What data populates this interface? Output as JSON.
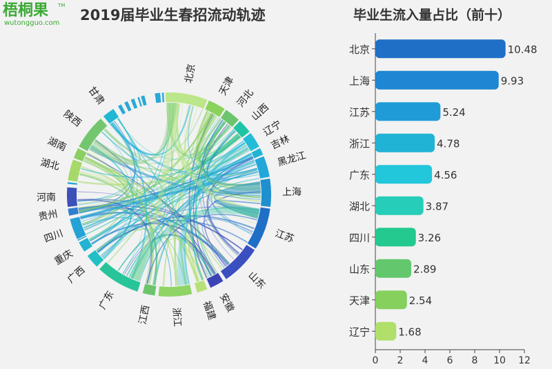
{
  "logo": {
    "name": "梧桐果",
    "site": "wutongguo.com",
    "tm": "TM"
  },
  "titles": {
    "chord": "2019届毕业生春招流动轨迹",
    "bar": "毕业生流入量占比（前十）"
  },
  "chord": {
    "regions": [
      "北京",
      "天津",
      "河北",
      "山西",
      "辽宁",
      "吉林",
      "黑龙江",
      "上海",
      "江苏",
      "山东",
      "安徽",
      "福建",
      "浙江",
      "江西",
      "广东",
      "广西",
      "重庆",
      "四川",
      "贵州",
      "河南",
      "湖北",
      "湖南",
      "陕西",
      "甘肃"
    ],
    "colors": [
      "#bce68a",
      "#8ad25c",
      "#6cc56c",
      "#1fc4a6",
      "#22bcd8",
      "#21b3d6",
      "#21a8d8",
      "#1e90d0",
      "#1f6fc7",
      "#3a4fc0",
      "#3b44b6",
      "#b8e07a",
      "#8fd465",
      "#6cc56c",
      "#27c49a",
      "#22c0c4",
      "#22b2d2",
      "#25a2d6",
      "#2f7fcf",
      "#3d4fb8",
      "#a6d96a",
      "#8bcf63",
      "#73c66d",
      "#22b8d3"
    ]
  },
  "chart_data": {
    "type": "bar",
    "title": "毕业生流入量占比（前十）",
    "categories": [
      "北京",
      "上海",
      "江苏",
      "浙江",
      "广东",
      "湖北",
      "四川",
      "山东",
      "天津",
      "辽宁"
    ],
    "values": [
      10.48,
      9.93,
      5.24,
      4.78,
      4.56,
      3.87,
      3.26,
      2.89,
      2.54,
      1.68
    ],
    "colors": [
      "#1f6fc7",
      "#1e86d2",
      "#1f9cd8",
      "#21b3d6",
      "#22c7db",
      "#26cdb8",
      "#24c98f",
      "#63c86d",
      "#86d05e",
      "#b0e06a"
    ],
    "xlim": [
      0,
      12
    ],
    "xticks": [
      0,
      2,
      4,
      6,
      8,
      10,
      12
    ]
  }
}
